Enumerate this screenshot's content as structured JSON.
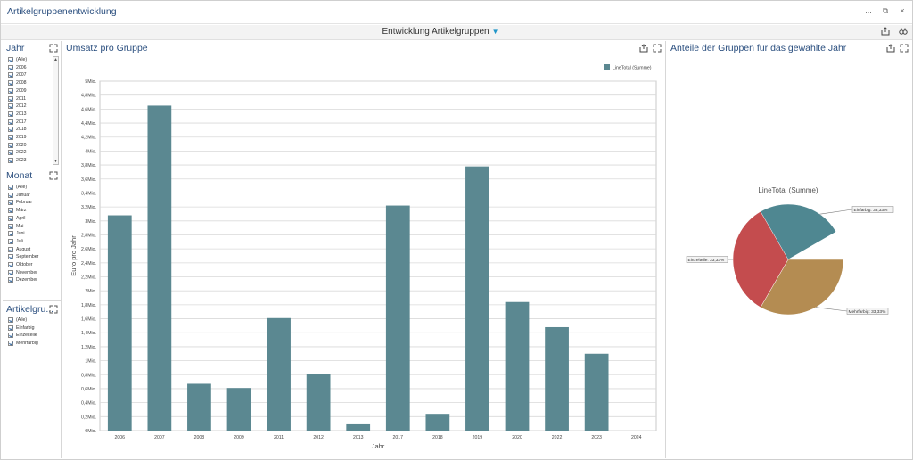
{
  "window": {
    "title": "Artikelgruppenentwicklung",
    "controls": [
      "...",
      "⧉",
      "×"
    ]
  },
  "dashboard": {
    "title": "Entwicklung Artikelgruppen"
  },
  "filters": {
    "jahr": {
      "title": "Jahr",
      "items": [
        "(Alle)",
        "2006",
        "2007",
        "2008",
        "2009",
        "2011",
        "2012",
        "2013",
        "2017",
        "2018",
        "2019",
        "2020",
        "2022",
        "2023"
      ]
    },
    "monat": {
      "title": "Monat",
      "items": [
        "(Alle)",
        "Januar",
        "Februar",
        "März",
        "April",
        "Mai",
        "Juni",
        "Juli",
        "August",
        "September",
        "Oktober",
        "November",
        "Dezember"
      ]
    },
    "artikelgruppe": {
      "title": "Artikelgru...",
      "items": [
        "(Alle)",
        "Einfarbig",
        "Einzelteile",
        "Mehrfarbig"
      ]
    }
  },
  "colors": {
    "bar": "#5b8891",
    "accent_title": "#2b4f7f",
    "pie": [
      "#4f8791",
      "#c44c4e",
      "#b48c52"
    ]
  },
  "bar_panel": {
    "title": "Umsatz pro Gruppe"
  },
  "pie_panel": {
    "title": "Anteile der Gruppen für das gewählte Jahr"
  },
  "chart_data": [
    {
      "type": "bar",
      "title": "",
      "xlabel": "Jahr",
      "ylabel": "Euro pro Jahr",
      "legend": [
        "LineTotal (Summe)"
      ],
      "legend_position": "top-right",
      "categories": [
        "2006",
        "2007",
        "2008",
        "2009",
        "2011",
        "2012",
        "2013",
        "2017",
        "2018",
        "2019",
        "2020",
        "2022",
        "2023",
        "2024"
      ],
      "series": [
        {
          "name": "LineTotal (Summe)",
          "values": [
            3.08,
            4.65,
            0.67,
            0.61,
            1.61,
            0.81,
            0.09,
            3.22,
            0.24,
            3.78,
            1.84,
            1.48,
            1.1,
            0
          ]
        }
      ],
      "unit": "Mio.",
      "ylim": [
        0,
        5
      ],
      "yticks": [
        "0Mio.",
        "0,2Mio.",
        "0,4Mio.",
        "0,6Mio.",
        "0,8Mio.",
        "1Mio.",
        "1,2Mio.",
        "1,4Mio.",
        "1,6Mio.",
        "1,8Mio.",
        "2Mio.",
        "2,2Mio.",
        "2,4Mio.",
        "2,6Mio.",
        "2,8Mio.",
        "3Mio.",
        "3,2Mio.",
        "3,4Mio.",
        "3,6Mio.",
        "3,8Mio.",
        "4Mio.",
        "4,2Mio.",
        "4,4Mio.",
        "4,6Mio.",
        "4,8Mio.",
        "5Mio."
      ],
      "grid": true
    },
    {
      "type": "pie",
      "title": "LineTotal (Summe)",
      "slices": [
        {
          "label": "Einfarbig: 33,33%",
          "value": 33.33
        },
        {
          "label": "Einzelteile: 33,33%",
          "value": 33.33
        },
        {
          "label": "Mehrfarbig: 33,33%",
          "value": 33.33
        }
      ]
    }
  ]
}
